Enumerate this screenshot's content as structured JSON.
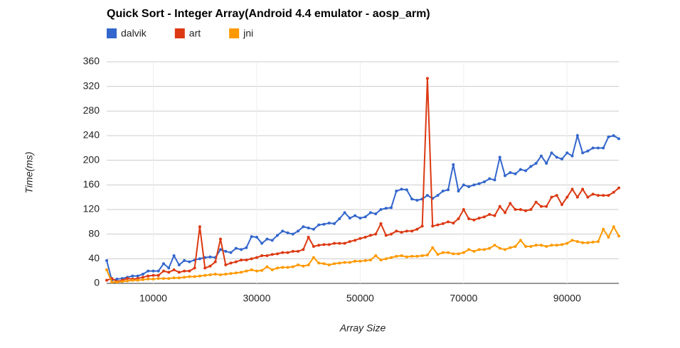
{
  "chart_data": {
    "type": "line",
    "title": "Quick Sort - Integer Array(Android 4.4 emulator - aosp_arm)",
    "x_label": "Array Size",
    "y_label": "Time(ms)",
    "legend": "top",
    "grid": true,
    "x": [
      1000,
      2000,
      3000,
      4000,
      5000,
      6000,
      7000,
      8000,
      9000,
      10000,
      11000,
      12000,
      13000,
      14000,
      15000,
      16000,
      17000,
      18000,
      19000,
      20000,
      21000,
      22000,
      23000,
      24000,
      25000,
      26000,
      27000,
      28000,
      29000,
      30000,
      31000,
      32000,
      33000,
      34000,
      35000,
      36000,
      37000,
      38000,
      39000,
      40000,
      41000,
      42000,
      43000,
      44000,
      45000,
      46000,
      47000,
      48000,
      49000,
      50000,
      51000,
      52000,
      53000,
      54000,
      55000,
      56000,
      57000,
      58000,
      59000,
      60000,
      61000,
      62000,
      63000,
      64000,
      65000,
      66000,
      67000,
      68000,
      69000,
      70000,
      71000,
      72000,
      73000,
      74000,
      75000,
      76000,
      77000,
      78000,
      79000,
      80000,
      81000,
      82000,
      83000,
      84000,
      85000,
      86000,
      87000,
      88000,
      89000,
      90000,
      91000,
      92000,
      93000,
      94000,
      95000,
      96000,
      97000,
      98000,
      99000,
      100000
    ],
    "series": [
      {
        "name": "dalvik",
        "color": "#3366cc",
        "values": [
          37,
          5,
          7,
          8,
          10,
          12,
          12,
          15,
          20,
          20,
          20,
          32,
          25,
          45,
          30,
          37,
          35,
          38,
          40,
          42,
          43,
          42,
          55,
          52,
          50,
          57,
          55,
          58,
          76,
          75,
          65,
          72,
          70,
          78,
          85,
          82,
          80,
          85,
          92,
          90,
          88,
          95,
          96,
          98,
          97,
          105,
          115,
          106,
          110,
          106,
          108,
          115,
          113,
          120,
          122,
          123,
          150,
          153,
          152,
          137,
          135,
          137,
          143,
          138,
          143,
          150,
          152,
          193,
          150,
          160,
          157,
          160,
          162,
          165,
          170,
          168,
          205,
          175,
          180,
          178,
          185,
          183,
          190,
          195,
          207,
          195,
          212,
          205,
          202,
          212,
          207,
          240,
          212,
          215,
          220,
          220,
          220,
          238,
          240,
          235
        ]
      },
      {
        "name": "art",
        "color": "#dc3912",
        "values": [
          5,
          8,
          3,
          5,
          8,
          7,
          8,
          10,
          12,
          13,
          13,
          20,
          18,
          22,
          18,
          20,
          20,
          25,
          92,
          25,
          28,
          35,
          72,
          30,
          33,
          35,
          38,
          38,
          40,
          42,
          45,
          45,
          47,
          48,
          50,
          50,
          52,
          52,
          55,
          75,
          60,
          62,
          63,
          63,
          65,
          65,
          65,
          68,
          70,
          73,
          75,
          78,
          80,
          97,
          78,
          80,
          85,
          83,
          85,
          85,
          88,
          93,
          333,
          93,
          95,
          97,
          100,
          98,
          105,
          120,
          105,
          103,
          106,
          108,
          112,
          110,
          125,
          115,
          130,
          120,
          120,
          118,
          120,
          132,
          125,
          125,
          140,
          143,
          128,
          140,
          153,
          140,
          153,
          140,
          145,
          143,
          143,
          143,
          148,
          155
        ]
      },
      {
        "name": "jni",
        "color": "#ff9900",
        "values": [
          22,
          2,
          2,
          3,
          4,
          5,
          5,
          6,
          7,
          7,
          8,
          8,
          8,
          9,
          9,
          10,
          11,
          11,
          12,
          13,
          14,
          15,
          14,
          15,
          16,
          17,
          18,
          20,
          22,
          20,
          21,
          27,
          22,
          25,
          26,
          26,
          27,
          30,
          28,
          30,
          42,
          33,
          32,
          30,
          32,
          33,
          34,
          34,
          36,
          36,
          37,
          38,
          45,
          38,
          40,
          42,
          44,
          45,
          43,
          44,
          44,
          45,
          46,
          58,
          47,
          50,
          50,
          48,
          48,
          50,
          55,
          52,
          55,
          55,
          57,
          62,
          57,
          55,
          58,
          60,
          70,
          60,
          60,
          62,
          62,
          60,
          62,
          62,
          63,
          65,
          70,
          68,
          66,
          66,
          67,
          68,
          88,
          75,
          92,
          77
        ]
      }
    ],
    "xlim": [
      1000,
      100000
    ],
    "xticks": [
      10000,
      30000,
      50000,
      70000,
      90000
    ],
    "ylim": [
      0,
      360
    ],
    "yticks": [
      0,
      40,
      80,
      120,
      160,
      200,
      240,
      280,
      320,
      360
    ]
  }
}
